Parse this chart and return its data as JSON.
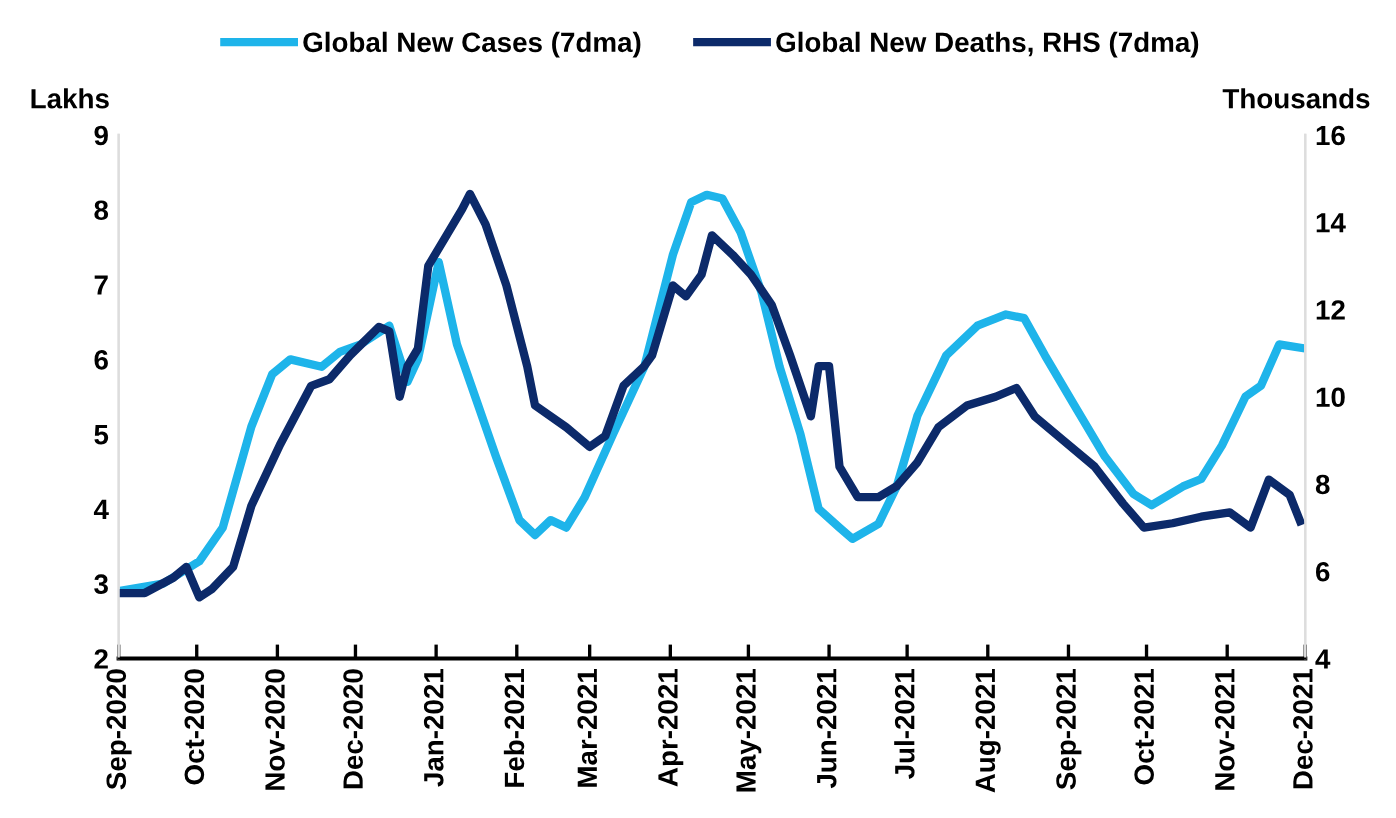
{
  "chart_data": {
    "type": "line",
    "ylabel": "Lakhs",
    "y2label": "Thousands",
    "legend": "top",
    "grid": false,
    "xlim": [
      "2020-09-01",
      "2021-12-01"
    ],
    "xticks": [
      {
        "value": "2020-09-01",
        "label": "Sep-2020"
      },
      {
        "value": "2020-10-01",
        "label": "Oct-2020"
      },
      {
        "value": "2020-11-01",
        "label": "Nov-2020"
      },
      {
        "value": "2020-12-01",
        "label": "Dec-2020"
      },
      {
        "value": "2021-01-01",
        "label": "Jan-2021"
      },
      {
        "value": "2021-02-01",
        "label": "Feb-2021"
      },
      {
        "value": "2021-03-01",
        "label": "Mar-2021"
      },
      {
        "value": "2021-04-01",
        "label": "Apr-2021"
      },
      {
        "value": "2021-05-01",
        "label": "May-2021"
      },
      {
        "value": "2021-06-01",
        "label": "Jun-2021"
      },
      {
        "value": "2021-07-01",
        "label": "Jul-2021"
      },
      {
        "value": "2021-08-01",
        "label": "Aug-2021"
      },
      {
        "value": "2021-09-01",
        "label": "Sep-2021"
      },
      {
        "value": "2021-10-01",
        "label": "Oct-2021"
      },
      {
        "value": "2021-11-01",
        "label": "Nov-2021"
      },
      {
        "value": "2021-12-01",
        "label": "Dec-2021"
      }
    ],
    "ylim": [
      2,
      9
    ],
    "yticks": [
      2,
      3,
      4,
      5,
      6,
      7,
      8,
      9
    ],
    "y2lim": [
      4,
      16
    ],
    "y2ticks": [
      4,
      6,
      8,
      10,
      12,
      14,
      16
    ],
    "series": [
      {
        "name": "Global New Cases (7dma)",
        "color": "#1eb4ea",
        "x": [
          "2020-09-01",
          "2020-09-18",
          "2020-10-02",
          "2020-10-11",
          "2020-10-22",
          "2020-10-30",
          "2020-11-06",
          "2020-11-18",
          "2020-11-25",
          "2020-12-03",
          "2020-12-14",
          "2020-12-21",
          "2020-12-25",
          "2021-01-02",
          "2021-01-09",
          "2021-01-17",
          "2021-01-24",
          "2021-02-02",
          "2021-02-08",
          "2021-02-14",
          "2021-02-20",
          "2021-02-27",
          "2021-03-10",
          "2021-03-22",
          "2021-04-02",
          "2021-04-09",
          "2021-04-15",
          "2021-04-21",
          "2021-04-28",
          "2021-05-06",
          "2021-05-13",
          "2021-05-21",
          "2021-05-28",
          "2021-06-05",
          "2021-06-10",
          "2021-06-20",
          "2021-06-27",
          "2021-07-05",
          "2021-07-16",
          "2021-07-28",
          "2021-08-08",
          "2021-08-15",
          "2021-08-23",
          "2021-09-03",
          "2021-09-15",
          "2021-09-26",
          "2021-10-03",
          "2021-10-15",
          "2021-10-22",
          "2021-10-30",
          "2021-11-08",
          "2021-11-14",
          "2021-11-21",
          "2021-11-30"
        ],
        "values": [
          2.9,
          3.0,
          3.3,
          3.75,
          5.1,
          5.8,
          6.0,
          5.9,
          6.1,
          6.2,
          6.45,
          5.7,
          6.0,
          7.3,
          6.2,
          5.4,
          4.7,
          3.85,
          3.65,
          3.85,
          3.75,
          4.15,
          5.0,
          5.9,
          7.4,
          8.1,
          8.2,
          8.15,
          7.7,
          6.9,
          5.9,
          5.0,
          4.0,
          3.75,
          3.6,
          3.8,
          4.3,
          5.25,
          6.05,
          6.45,
          6.6,
          6.55,
          6.05,
          5.4,
          4.7,
          4.2,
          4.05,
          4.3,
          4.4,
          4.85,
          5.5,
          5.65,
          6.2,
          6.15
        ]
      },
      {
        "name": "Global New Deaths, RHS (7dma)",
        "color": "#0c2a6a",
        "axis": "y2",
        "x": [
          "2020-09-01",
          "2020-09-11",
          "2020-09-22",
          "2020-09-27",
          "2020-10-02",
          "2020-10-07",
          "2020-10-15",
          "2020-10-22",
          "2020-11-02",
          "2020-11-14",
          "2020-11-21",
          "2020-11-29",
          "2020-12-10",
          "2020-12-14",
          "2020-12-18",
          "2020-12-21",
          "2020-12-25",
          "2020-12-29",
          "2021-01-05",
          "2021-01-11",
          "2021-01-14",
          "2021-01-20",
          "2021-01-28",
          "2021-02-05",
          "2021-02-08",
          "2021-02-20",
          "2021-03-01",
          "2021-03-07",
          "2021-03-14",
          "2021-03-22",
          "2021-03-25",
          "2021-04-02",
          "2021-04-07",
          "2021-04-13",
          "2021-04-17",
          "2021-04-25",
          "2021-05-02",
          "2021-05-10",
          "2021-05-17",
          "2021-05-25",
          "2021-05-28",
          "2021-06-01",
          "2021-06-05",
          "2021-06-12",
          "2021-06-20",
          "2021-06-27",
          "2021-07-05",
          "2021-07-13",
          "2021-07-24",
          "2021-08-04",
          "2021-08-12",
          "2021-08-19",
          "2021-08-30",
          "2021-09-11",
          "2021-09-22",
          "2021-09-30",
          "2021-10-11",
          "2021-10-22",
          "2021-11-02",
          "2021-11-10",
          "2021-11-17",
          "2021-11-25",
          "2021-11-29"
        ],
        "values": [
          5.5,
          5.5,
          5.85,
          6.1,
          5.4,
          5.6,
          6.1,
          7.5,
          8.9,
          10.25,
          10.4,
          10.95,
          11.6,
          11.5,
          10.0,
          10.7,
          11.1,
          13.0,
          13.7,
          14.3,
          14.65,
          13.95,
          12.55,
          10.7,
          9.8,
          9.3,
          8.85,
          9.1,
          10.25,
          10.7,
          10.95,
          12.55,
          12.3,
          12.8,
          13.7,
          13.25,
          12.8,
          12.1,
          10.95,
          9.55,
          10.7,
          10.7,
          8.4,
          7.7,
          7.7,
          7.95,
          8.5,
          9.3,
          9.8,
          10.0,
          10.2,
          9.55,
          9.0,
          8.4,
          7.55,
          7.0,
          7.1,
          7.25,
          7.35,
          7.0,
          8.1,
          7.75,
          7.15
        ]
      }
    ]
  }
}
